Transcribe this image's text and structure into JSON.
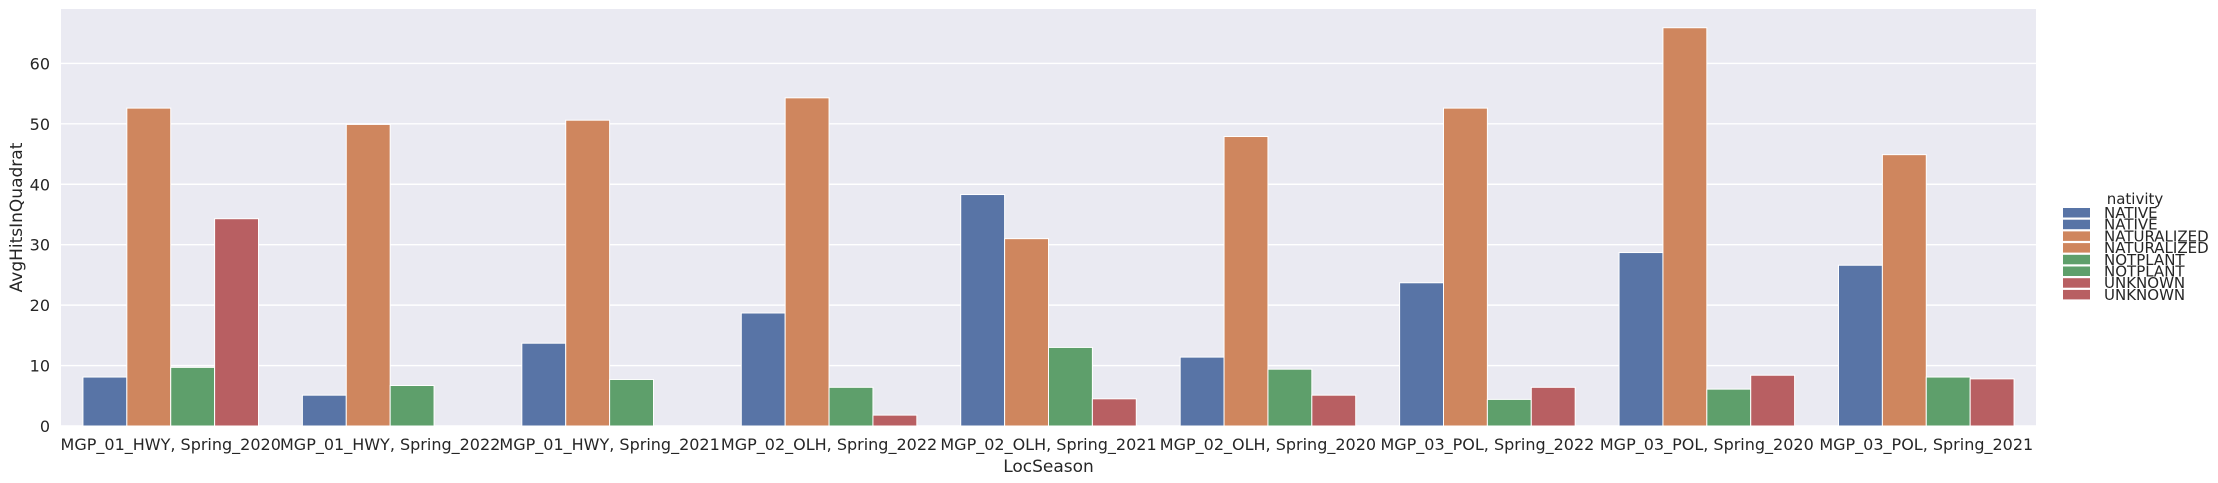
{
  "chart_data": {
    "type": "bar",
    "xlabel": "LocSeason",
    "ylabel": "AvgHitsInQuadrat",
    "ylim": [
      0,
      69
    ],
    "yticks": [
      0,
      10,
      20,
      30,
      40,
      50,
      60
    ],
    "grid": true,
    "categories": [
      "MGP_01_HWY, Spring_2020",
      "MGP_01_HWY, Spring_2022",
      "MGP_01_HWY, Spring_2021",
      "MGP_02_OLH, Spring_2022",
      "MGP_02_OLH, Spring_2021",
      "MGP_02_OLH, Spring_2020",
      "MGP_03_POL, Spring_2022",
      "MGP_03_POL, Spring_2020",
      "MGP_03_POL, Spring_2021"
    ],
    "series": [
      {
        "name": "NATIVE",
        "color": "#5874a6",
        "values": [
          8.1,
          5.1,
          13.7,
          18.7,
          38.3,
          11.4,
          23.7,
          28.7,
          26.6
        ]
      },
      {
        "name": "NATURALIZED",
        "color": "#cf865e",
        "values": [
          52.6,
          49.9,
          50.6,
          54.3,
          31.0,
          47.9,
          52.6,
          65.9,
          44.9
        ]
      },
      {
        "name": "NOTPLANT",
        "color": "#5e9f6b",
        "values": [
          9.7,
          6.7,
          7.7,
          6.4,
          13.0,
          9.4,
          4.4,
          6.1,
          8.1
        ]
      },
      {
        "name": "UNKNOWN",
        "color": "#b85f62",
        "values": [
          34.3,
          null,
          null,
          1.8,
          4.5,
          5.1,
          6.4,
          8.4,
          7.8
        ]
      }
    ],
    "legend": {
      "title": "nativity",
      "placement": "right",
      "entries": [
        {
          "label": "NATIVE",
          "color": "#5874a6"
        },
        {
          "label": "NATIVE",
          "color": "#5874a6"
        },
        {
          "label": "NATURALIZED",
          "color": "#cf865e"
        },
        {
          "label": "NATURALIZED",
          "color": "#cf865e"
        },
        {
          "label": "NOTPLANT",
          "color": "#5e9f6b"
        },
        {
          "label": "NOTPLANT",
          "color": "#5e9f6b"
        },
        {
          "label": "UNKNOWN",
          "color": "#b85f62"
        },
        {
          "label": "UNKNOWN",
          "color": "#b85f62"
        }
      ]
    },
    "colors": {
      "plot_background": "#eaeaf2",
      "grid": "#ffffff"
    }
  }
}
